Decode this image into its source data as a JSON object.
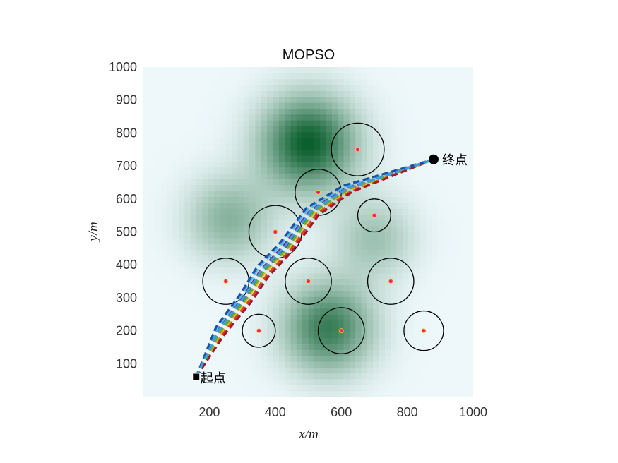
{
  "chart_data": {
    "type": "scatter",
    "title": "MOPSO",
    "xlabel": "x/m",
    "ylabel": "y/m",
    "xlim": [
      0,
      1000
    ],
    "ylim": [
      0,
      1000
    ],
    "xticks": [
      200,
      400,
      600,
      800,
      1000
    ],
    "yticks": [
      100,
      200,
      300,
      400,
      500,
      600,
      700,
      800,
      900,
      1000
    ],
    "grid": false,
    "background": {
      "colormap": [
        "#eef8fb",
        "#0b5e2e"
      ],
      "peaks": [
        {
          "x": 500,
          "y": 770,
          "height": 1.0,
          "spread": 100
        },
        {
          "x": 560,
          "y": 210,
          "height": 0.8,
          "spread": 95
        },
        {
          "x": 260,
          "y": 540,
          "height": 0.45,
          "spread": 90
        },
        {
          "x": 700,
          "y": 480,
          "height": 0.35,
          "spread": 85
        }
      ]
    },
    "obstacles": [
      {
        "x": 650,
        "y": 750,
        "r": 80
      },
      {
        "x": 530,
        "y": 620,
        "r": 70
      },
      {
        "x": 700,
        "y": 550,
        "r": 50
      },
      {
        "x": 400,
        "y": 500,
        "r": 80
      },
      {
        "x": 250,
        "y": 350,
        "r": 70
      },
      {
        "x": 500,
        "y": 350,
        "r": 70
      },
      {
        "x": 750,
        "y": 350,
        "r": 70
      },
      {
        "x": 350,
        "y": 200,
        "r": 50
      },
      {
        "x": 600,
        "y": 200,
        "r": 70
      },
      {
        "x": 850,
        "y": 200,
        "r": 60
      }
    ],
    "start": {
      "x": 160,
      "y": 60,
      "label": "起点"
    },
    "end": {
      "x": 880,
      "y": 720,
      "label": "终点"
    },
    "series": [
      {
        "color": "#1f4fa8",
        "points": [
          [
            160,
            60
          ],
          [
            230,
            200
          ],
          [
            310,
            300
          ],
          [
            360,
            380
          ],
          [
            430,
            450
          ],
          [
            510,
            560
          ],
          [
            620,
            630
          ],
          [
            880,
            720
          ]
        ]
      },
      {
        "color": "#d4491a",
        "points": [
          [
            160,
            60
          ],
          [
            240,
            190
          ],
          [
            320,
            290
          ],
          [
            375,
            370
          ],
          [
            445,
            445
          ],
          [
            525,
            555
          ],
          [
            630,
            625
          ],
          [
            880,
            720
          ]
        ]
      },
      {
        "color": "#e7b52e",
        "points": [
          [
            160,
            60
          ],
          [
            236,
            194
          ],
          [
            314,
            296
          ],
          [
            368,
            376
          ],
          [
            437,
            448
          ],
          [
            517,
            558
          ],
          [
            625,
            628
          ],
          [
            880,
            720
          ]
        ]
      },
      {
        "color": "#7a2a8e",
        "points": [
          [
            160,
            60
          ],
          [
            226,
            203
          ],
          [
            304,
            304
          ],
          [
            356,
            385
          ],
          [
            423,
            455
          ],
          [
            504,
            563
          ],
          [
            615,
            633
          ],
          [
            880,
            720
          ]
        ]
      },
      {
        "color": "#6aa832",
        "points": [
          [
            160,
            60
          ],
          [
            233,
            197
          ],
          [
            312,
            298
          ],
          [
            364,
            379
          ],
          [
            435,
            449
          ],
          [
            514,
            559
          ],
          [
            622,
            630
          ],
          [
            880,
            720
          ]
        ]
      },
      {
        "color": "#4dbbe6",
        "points": [
          [
            160,
            60
          ],
          [
            222,
            206
          ],
          [
            300,
            310
          ],
          [
            350,
            392
          ],
          [
            418,
            462
          ],
          [
            498,
            568
          ],
          [
            610,
            637
          ],
          [
            880,
            720
          ]
        ]
      },
      {
        "color": "#a11830",
        "points": [
          [
            160,
            60
          ],
          [
            244,
            186
          ],
          [
            326,
            286
          ],
          [
            380,
            366
          ],
          [
            450,
            440
          ],
          [
            532,
            552
          ],
          [
            634,
            622
          ],
          [
            880,
            720
          ]
        ]
      },
      {
        "color": "#1f4fa8",
        "points": [
          [
            160,
            60
          ],
          [
            220,
            210
          ],
          [
            296,
            314
          ],
          [
            346,
            396
          ],
          [
            414,
            466
          ],
          [
            494,
            572
          ],
          [
            606,
            640
          ],
          [
            880,
            720
          ]
        ]
      },
      {
        "color": "#3aa0d8",
        "points": [
          [
            160,
            60
          ],
          [
            228,
            201
          ],
          [
            306,
            303
          ],
          [
            358,
            383
          ],
          [
            427,
            453
          ],
          [
            507,
            562
          ],
          [
            618,
            632
          ],
          [
            880,
            720
          ]
        ]
      }
    ]
  }
}
